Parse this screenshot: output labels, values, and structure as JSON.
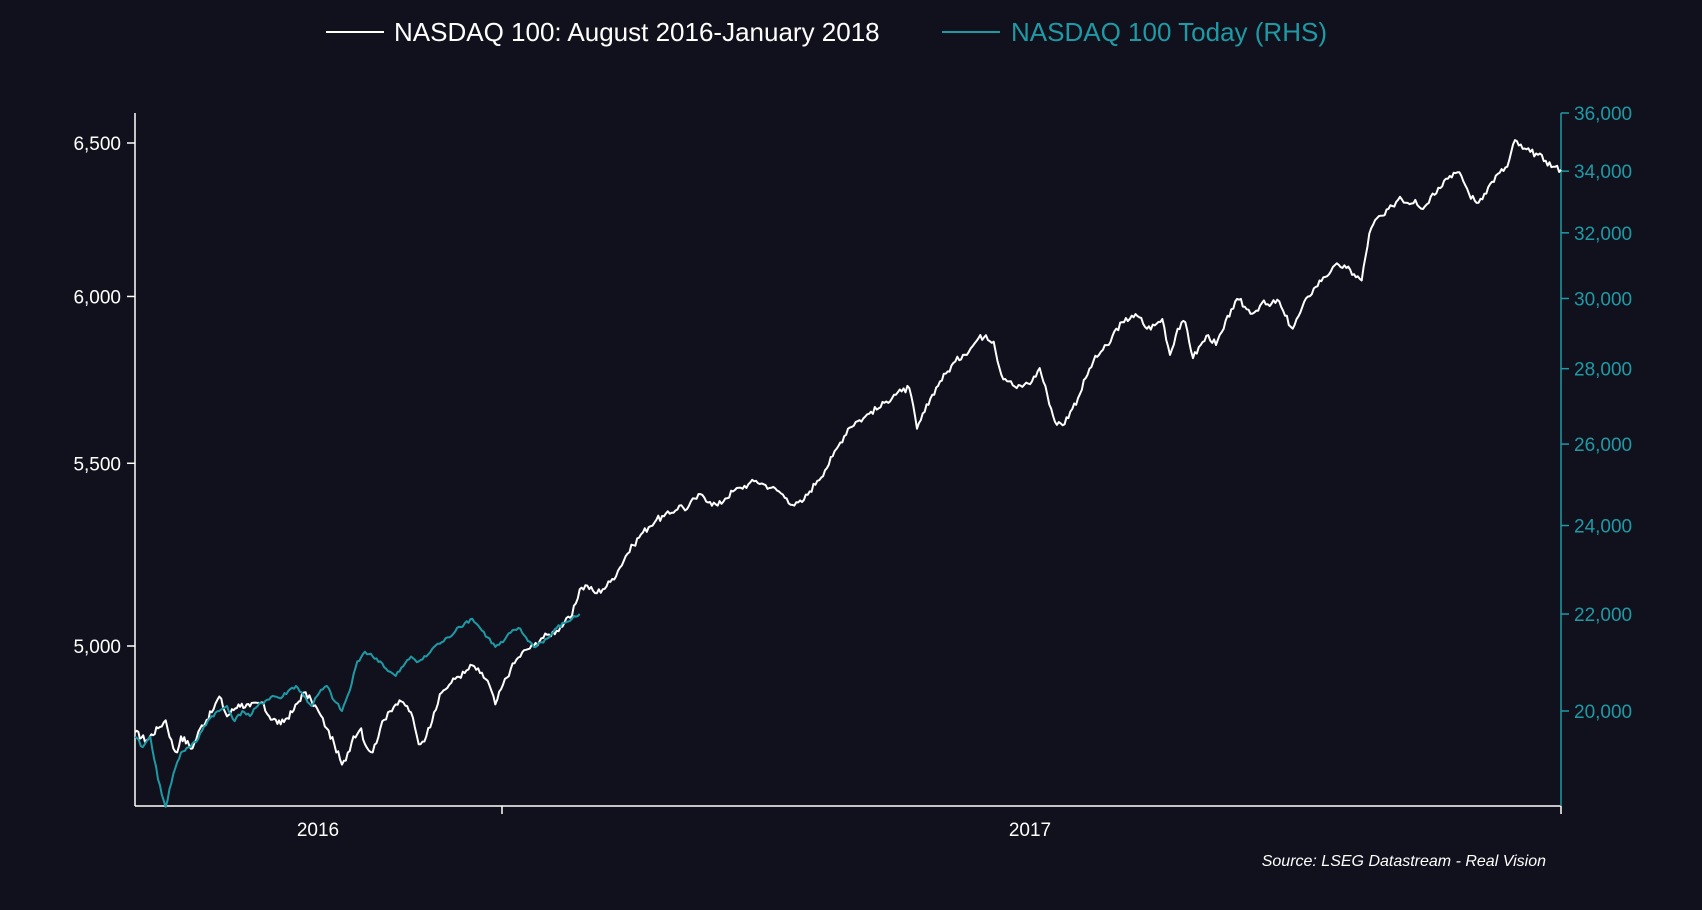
{
  "chart_data": {
    "type": "line",
    "colors": {
      "background": "#11111d",
      "white_series": "#ffffff",
      "teal_series": "#1e9aa5"
    },
    "legend": {
      "placement": "top-center",
      "items": [
        {
          "label": "NASDAQ 100: August 2016-January 2018",
          "color": "#ffffff"
        },
        {
          "label": "NASDAQ 100 Today (RHS)",
          "color": "#1e9aa5"
        }
      ]
    },
    "source": "Source: LSEG Datastream - Real Vision",
    "x_axis": {
      "labels": [
        "2016",
        "2017"
      ],
      "ticks_note": "year separators"
    },
    "y_left": {
      "scale": "log",
      "ticks": [
        "6,500",
        "6,000",
        "5,500",
        "5,000"
      ],
      "tick_values": [
        6500,
        6000,
        5500,
        5000
      ]
    },
    "y_right": {
      "scale": "log",
      "ticks": [
        "36,000",
        "34,000",
        "32,000",
        "30,000",
        "28,000",
        "26,000",
        "24,000",
        "22,000",
        "20,000"
      ],
      "tick_values": [
        36000,
        34000,
        32000,
        30000,
        28000,
        26000,
        24000,
        22000,
        20000
      ]
    },
    "grid": false,
    "series": [
      {
        "name": "NASDAQ 100: August 2016-January 2018",
        "axis": "left",
        "keypoints": [
          [
            0,
            4780
          ],
          [
            3,
            4760
          ],
          [
            6,
            4790
          ],
          [
            8,
            4810
          ],
          [
            10,
            4740
          ],
          [
            11,
            4730
          ],
          [
            12,
            4770
          ],
          [
            15,
            4740
          ],
          [
            17,
            4790
          ],
          [
            20,
            4830
          ],
          [
            22,
            4870
          ],
          [
            24,
            4820
          ],
          [
            27,
            4850
          ],
          [
            30,
            4845
          ],
          [
            33,
            4855
          ],
          [
            35,
            4820
          ],
          [
            38,
            4800
          ],
          [
            41,
            4830
          ],
          [
            44,
            4880
          ],
          [
            46,
            4860
          ],
          [
            48,
            4830
          ],
          [
            50,
            4790
          ],
          [
            52,
            4750
          ],
          [
            54,
            4700
          ],
          [
            55,
            4710
          ],
          [
            57,
            4770
          ],
          [
            59,
            4790
          ],
          [
            60,
            4750
          ],
          [
            62,
            4730
          ],
          [
            64,
            4790
          ],
          [
            66,
            4830
          ],
          [
            68,
            4850
          ],
          [
            70,
            4855
          ],
          [
            72,
            4830
          ],
          [
            74,
            4750
          ],
          [
            76,
            4770
          ],
          [
            78,
            4830
          ],
          [
            80,
            4880
          ],
          [
            82,
            4900
          ],
          [
            84,
            4920
          ],
          [
            86,
            4930
          ],
          [
            88,
            4950
          ],
          [
            90,
            4930
          ],
          [
            92,
            4910
          ],
          [
            94,
            4850
          ],
          [
            96,
            4900
          ],
          [
            98,
            4940
          ],
          [
            100,
            4970
          ],
          [
            102,
            4990
          ],
          [
            104,
            5000
          ],
          [
            106,
            5020
          ],
          [
            108,
            5030
          ],
          [
            110,
            5040
          ],
          [
            112,
            5060
          ],
          [
            114,
            5080
          ],
          [
            116,
            5150
          ],
          [
            118,
            5160
          ],
          [
            120,
            5140
          ],
          [
            122,
            5150
          ],
          [
            124,
            5170
          ],
          [
            126,
            5200
          ],
          [
            128,
            5240
          ],
          [
            130,
            5270
          ],
          [
            132,
            5300
          ],
          [
            134,
            5320
          ],
          [
            136,
            5340
          ],
          [
            138,
            5350
          ],
          [
            140,
            5360
          ],
          [
            142,
            5380
          ],
          [
            144,
            5370
          ],
          [
            146,
            5400
          ],
          [
            148,
            5410
          ],
          [
            150,
            5390
          ],
          [
            152,
            5380
          ],
          [
            154,
            5400
          ],
          [
            156,
            5420
          ],
          [
            158,
            5430
          ],
          [
            160,
            5440
          ],
          [
            162,
            5450
          ],
          [
            164,
            5440
          ],
          [
            166,
            5430
          ],
          [
            168,
            5420
          ],
          [
            170,
            5400
          ],
          [
            172,
            5380
          ],
          [
            174,
            5390
          ],
          [
            176,
            5420
          ],
          [
            178,
            5450
          ],
          [
            180,
            5480
          ],
          [
            182,
            5520
          ],
          [
            184,
            5560
          ],
          [
            186,
            5600
          ],
          [
            188,
            5620
          ],
          [
            190,
            5630
          ],
          [
            192,
            5650
          ],
          [
            194,
            5660
          ],
          [
            196,
            5680
          ],
          [
            198,
            5700
          ],
          [
            200,
            5710
          ],
          [
            202,
            5720
          ],
          [
            204,
            5600
          ],
          [
            206,
            5650
          ],
          [
            208,
            5700
          ],
          [
            210,
            5740
          ],
          [
            212,
            5770
          ],
          [
            214,
            5800
          ],
          [
            216,
            5820
          ],
          [
            218,
            5840
          ],
          [
            220,
            5870
          ],
          [
            222,
            5880
          ],
          [
            224,
            5860
          ],
          [
            226,
            5760
          ],
          [
            228,
            5740
          ],
          [
            230,
            5720
          ],
          [
            232,
            5730
          ],
          [
            234,
            5740
          ],
          [
            236,
            5780
          ],
          [
            238,
            5700
          ],
          [
            240,
            5620
          ],
          [
            242,
            5610
          ],
          [
            244,
            5650
          ],
          [
            246,
            5690
          ],
          [
            248,
            5750
          ],
          [
            250,
            5800
          ],
          [
            252,
            5830
          ],
          [
            254,
            5850
          ],
          [
            256,
            5900
          ],
          [
            258,
            5920
          ],
          [
            260,
            5940
          ],
          [
            262,
            5935
          ],
          [
            264,
            5900
          ],
          [
            266,
            5910
          ],
          [
            268,
            5930
          ],
          [
            270,
            5820
          ],
          [
            272,
            5900
          ],
          [
            274,
            5920
          ],
          [
            276,
            5810
          ],
          [
            278,
            5850
          ],
          [
            280,
            5880
          ],
          [
            282,
            5850
          ],
          [
            284,
            5900
          ],
          [
            286,
            5960
          ],
          [
            288,
            5990
          ],
          [
            290,
            5960
          ],
          [
            292,
            5950
          ],
          [
            294,
            5980
          ],
          [
            296,
            5970
          ],
          [
            298,
            5990
          ],
          [
            300,
            5940
          ],
          [
            302,
            5900
          ],
          [
            304,
            5950
          ],
          [
            306,
            6000
          ],
          [
            308,
            6030
          ],
          [
            310,
            6060
          ],
          [
            312,
            6080
          ],
          [
            314,
            6100
          ],
          [
            316,
            6090
          ],
          [
            318,
            6070
          ],
          [
            320,
            6050
          ],
          [
            322,
            6200
          ],
          [
            324,
            6250
          ],
          [
            326,
            6260
          ],
          [
            328,
            6290
          ],
          [
            330,
            6320
          ],
          [
            332,
            6300
          ],
          [
            334,
            6310
          ],
          [
            336,
            6280
          ],
          [
            338,
            6320
          ],
          [
            340,
            6350
          ],
          [
            342,
            6380
          ],
          [
            344,
            6400
          ],
          [
            346,
            6390
          ],
          [
            348,
            6330
          ],
          [
            350,
            6300
          ],
          [
            352,
            6330
          ],
          [
            354,
            6370
          ],
          [
            356,
            6400
          ],
          [
            358,
            6420
          ],
          [
            360,
            6510
          ],
          [
            362,
            6480
          ],
          [
            364,
            6470
          ],
          [
            366,
            6460
          ],
          [
            368,
            6440
          ],
          [
            370,
            6420
          ],
          [
            372,
            6410
          ]
        ]
      },
      {
        "name": "NASDAQ 100 Today (RHS)",
        "axis": "right",
        "keypoints": [
          [
            0,
            19500
          ],
          [
            2,
            19300
          ],
          [
            4,
            19500
          ],
          [
            6,
            18700
          ],
          [
            8,
            18200
          ],
          [
            10,
            18800
          ],
          [
            12,
            19200
          ],
          [
            14,
            19300
          ],
          [
            16,
            19400
          ],
          [
            18,
            19700
          ],
          [
            20,
            19900
          ],
          [
            22,
            20000
          ],
          [
            24,
            20100
          ],
          [
            26,
            19800
          ],
          [
            28,
            20000
          ],
          [
            30,
            19900
          ],
          [
            32,
            20100
          ],
          [
            34,
            20200
          ],
          [
            36,
            20300
          ],
          [
            38,
            20250
          ],
          [
            40,
            20400
          ],
          [
            42,
            20500
          ],
          [
            44,
            20300
          ],
          [
            46,
            20100
          ],
          [
            48,
            20350
          ],
          [
            50,
            20500
          ],
          [
            52,
            20200
          ],
          [
            54,
            20000
          ],
          [
            56,
            20400
          ],
          [
            58,
            21000
          ],
          [
            60,
            21200
          ],
          [
            62,
            21100
          ],
          [
            64,
            21000
          ],
          [
            66,
            20800
          ],
          [
            68,
            20700
          ],
          [
            70,
            20900
          ],
          [
            72,
            21100
          ],
          [
            74,
            21000
          ],
          [
            76,
            21100
          ],
          [
            78,
            21300
          ],
          [
            80,
            21400
          ],
          [
            82,
            21500
          ],
          [
            84,
            21700
          ],
          [
            86,
            21800
          ],
          [
            88,
            21900
          ],
          [
            90,
            21700
          ],
          [
            92,
            21500
          ],
          [
            94,
            21300
          ],
          [
            96,
            21400
          ],
          [
            98,
            21600
          ],
          [
            100,
            21700
          ],
          [
            102,
            21500
          ],
          [
            104,
            21300
          ],
          [
            106,
            21400
          ],
          [
            108,
            21500
          ],
          [
            110,
            21700
          ],
          [
            112,
            21800
          ],
          [
            114,
            21900
          ],
          [
            116,
            22000
          ]
        ]
      }
    ]
  }
}
